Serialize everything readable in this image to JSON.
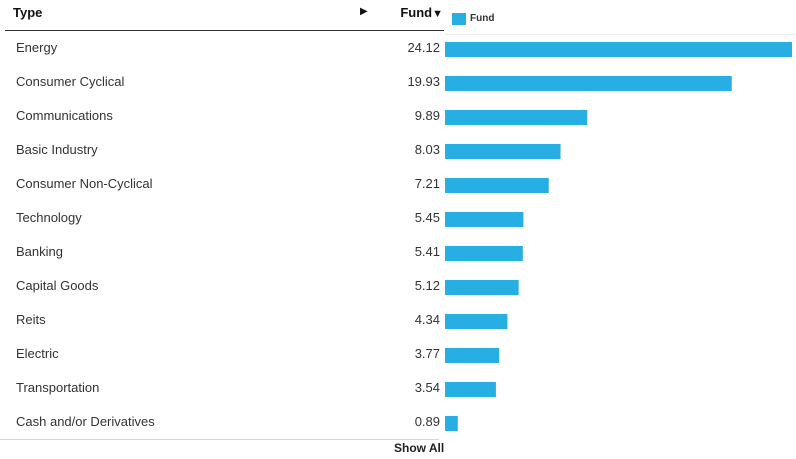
{
  "table": {
    "header": {
      "type": "Type",
      "arrow": "▶",
      "fund": "Fund",
      "fund_caret": "▼"
    },
    "footer": {
      "show_all": "Show All"
    }
  },
  "colors": {
    "bar": "#27aee3",
    "header_rule": "#333333"
  },
  "chart_data": {
    "type": "bar",
    "orientation": "horizontal",
    "legend": {
      "label": "Fund",
      "placement": "top-left"
    },
    "categories": [
      "Energy",
      "Consumer Cyclical",
      "Communications",
      "Basic Industry",
      "Consumer Non-Cyclical",
      "Technology",
      "Banking",
      "Capital Goods",
      "Reits",
      "Electric",
      "Transportation",
      "Cash and/or Derivatives"
    ],
    "value_labels": [
      "24.12",
      "19.93",
      "9.89",
      "8.03",
      "7.21",
      "5.45",
      "5.41",
      "5.12",
      "4.34",
      "3.77",
      "3.54",
      "0.89"
    ],
    "series": [
      {
        "name": "Fund",
        "values": [
          24.12,
          19.93,
          9.89,
          8.03,
          7.21,
          5.45,
          5.41,
          5.12,
          4.34,
          3.77,
          3.54,
          0.89
        ]
      }
    ],
    "xlim": [
      0,
      24.12
    ],
    "grid": false
  }
}
